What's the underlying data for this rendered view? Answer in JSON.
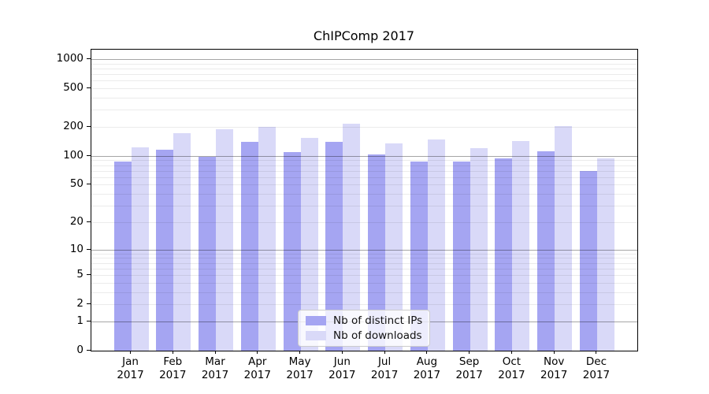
{
  "title": "ChIPComp 2017",
  "chart_data": {
    "type": "bar",
    "title": "ChIPComp 2017",
    "categories": [
      "Jan",
      "Feb",
      "Mar",
      "Apr",
      "May",
      "Jun",
      "Jul",
      "Aug",
      "Sep",
      "Oct",
      "Nov",
      "Dec"
    ],
    "x_year_label": "2017",
    "series": [
      {
        "name": "Nb of distinct IPs",
        "color": "#a5a5f2",
        "values": [
          88,
          116,
          98,
          141,
          110,
          141,
          104,
          88,
          87,
          94,
          112,
          70
        ]
      },
      {
        "name": "Nb of downloads",
        "color": "#d9d9f8",
        "values": [
          122,
          171,
          189,
          200,
          155,
          215,
          135,
          148,
          120,
          142,
          205,
          95
        ]
      }
    ],
    "y_ticks": [
      0,
      1,
      2,
      5,
      10,
      20,
      50,
      100,
      200,
      500,
      1000
    ],
    "y_scale": "log10(1+value)",
    "ylim": [
      0,
      1250
    ],
    "grid": true,
    "legend_position": "lower center",
    "colors": {
      "spine": "#000000",
      "major_gridline": "rgba(0,0,0,0.35)",
      "minor_gridline": "rgba(0,0,0,0.08)",
      "text": "#000000"
    }
  }
}
